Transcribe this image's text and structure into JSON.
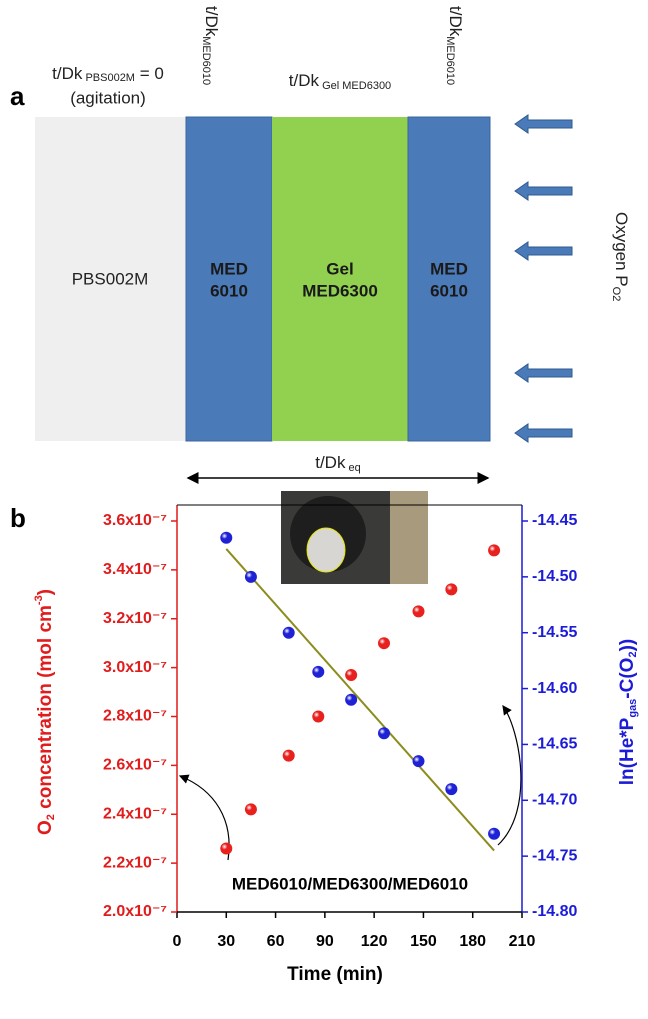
{
  "panel_a": {
    "label": "a",
    "left_label": {
      "main": "t/Dk",
      "sub": " PBS002M",
      "tail": " = 0",
      "line2": "(agitation)"
    },
    "top_labels": [
      {
        "main": "t/Dk",
        "sub": "MED6010"
      },
      {
        "main": "t/Dk",
        "sub": " Gel MED6300"
      },
      {
        "main": "t/Dk",
        "sub": "MED6010"
      }
    ],
    "layers": [
      [
        "PBS002M"
      ],
      [
        "MED",
        "6010"
      ],
      [
        "Gel",
        "MED6300"
      ],
      [
        "MED",
        "6010"
      ]
    ],
    "oxygen": {
      "main": "Oxygen P",
      "sub": "O2"
    },
    "eq_label": {
      "main": "t/Dk",
      "sub": " eq"
    }
  },
  "chart_data": {
    "type": "scatter",
    "panel_label": "b",
    "annotation": "MED6010/MED6300/MED6010",
    "xlabel": "Time (min)",
    "ylabel": [
      "O",
      "2",
      " concentration (mol cm",
      "-3",
      ")"
    ],
    "y2label": [
      "ln(He*P",
      "gas",
      "-C(O",
      "2",
      "))"
    ],
    "xlim": [
      0,
      210
    ],
    "xticks": [
      0,
      30,
      60,
      90,
      120,
      150,
      180,
      210
    ],
    "ylim": [
      2e-07,
      3.6e-07
    ],
    "yticks": [
      {
        "value": 2e-07,
        "label": "2.0x10⁻⁷"
      },
      {
        "value": 2.2e-07,
        "label": "2.2x10⁻⁷"
      },
      {
        "value": 2.4e-07,
        "label": "2.4x10⁻⁷"
      },
      {
        "value": 2.6e-07,
        "label": "2.6x10⁻⁷"
      },
      {
        "value": 2.8e-07,
        "label": "2.8x10⁻⁷"
      },
      {
        "value": 3e-07,
        "label": "3.0x10⁻⁷"
      },
      {
        "value": 3.2e-07,
        "label": "3.2x10⁻⁷"
      },
      {
        "value": 3.4e-07,
        "label": "3.4x10⁻⁷"
      },
      {
        "value": 3.6e-07,
        "label": "3.6x10⁻⁷"
      }
    ],
    "y2lim": [
      -14.8,
      -14.45
    ],
    "y2ticks": [
      {
        "value": -14.8,
        "label": "-14.80"
      },
      -14.75,
      {
        "value": -14.7,
        "label": "-14.70"
      },
      -14.65,
      {
        "value": -14.6,
        "label": "-14.60"
      },
      -14.55,
      {
        "value": -14.5,
        "label": "-14.50"
      },
      -14.45
    ],
    "y_color": "#e01c1c",
    "y2_color": "#1c1cd8",
    "series": [
      {
        "color": "#e8201e",
        "x": [
          30,
          45,
          68,
          86,
          106,
          126,
          147,
          167,
          193
        ],
        "values": [
          2.26e-07,
          2.42e-07,
          2.64e-07,
          2.8e-07,
          2.97e-07,
          3.1e-07,
          3.23e-07,
          3.32e-07,
          3.48e-07
        ]
      },
      {
        "color": "#1f22d4",
        "axis": "y2",
        "x": [
          30,
          45,
          68,
          86,
          106,
          126,
          147,
          167,
          193
        ],
        "values": [
          -14.465,
          -14.5,
          -14.55,
          -14.585,
          -14.61,
          -14.64,
          -14.665,
          -14.69,
          -14.73
        ]
      }
    ],
    "trendline": {
      "color": "#8c8c1c",
      "axis": "y2",
      "x": [
        30,
        193
      ],
      "values": [
        -14.475,
        -14.745
      ]
    }
  }
}
